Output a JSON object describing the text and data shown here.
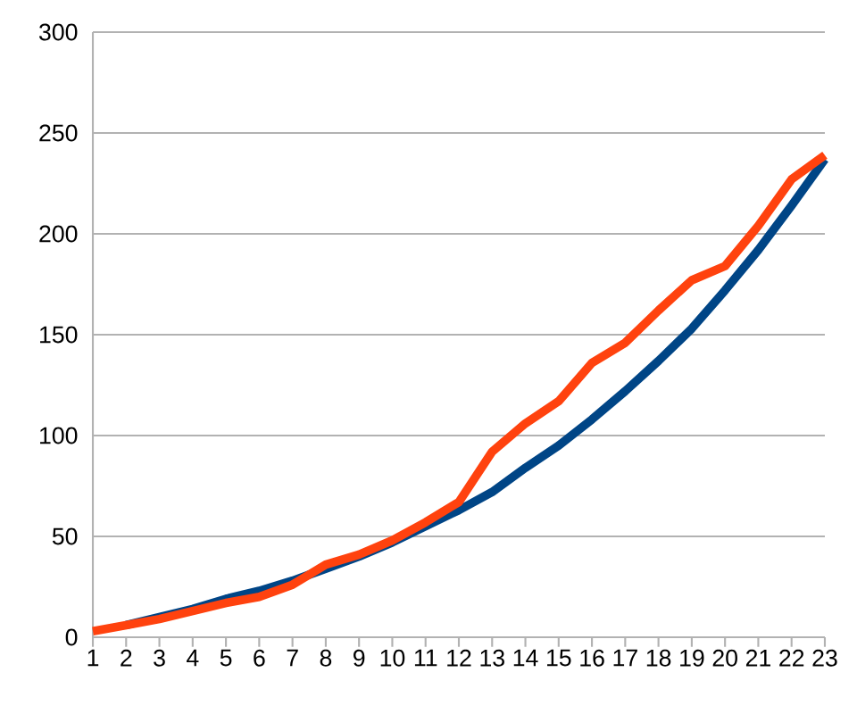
{
  "chart_data": {
    "type": "line",
    "categories": [
      "1",
      "2",
      "3",
      "4",
      "5",
      "6",
      "7",
      "8",
      "9",
      "10",
      "11",
      "12",
      "13",
      "14",
      "15",
      "16",
      "17",
      "18",
      "19",
      "20",
      "21",
      "22",
      "23"
    ],
    "series": [
      {
        "color": "#004586",
        "values": [
          null,
          6,
          10,
          14,
          19,
          23,
          28,
          34,
          40,
          47,
          55,
          63,
          72,
          84,
          95,
          108,
          122,
          137,
          153,
          172,
          192,
          214,
          237
        ]
      },
      {
        "color": "#ff420e",
        "values": [
          3,
          6,
          9,
          13,
          17,
          20,
          26,
          36,
          41,
          48,
          57,
          67,
          92,
          106,
          117,
          136,
          146,
          162,
          177,
          184,
          204,
          227,
          239
        ]
      }
    ],
    "ylim": [
      0,
      300
    ],
    "yticks": [
      0,
      50,
      100,
      150,
      200,
      250,
      300
    ],
    "grid": "y"
  }
}
